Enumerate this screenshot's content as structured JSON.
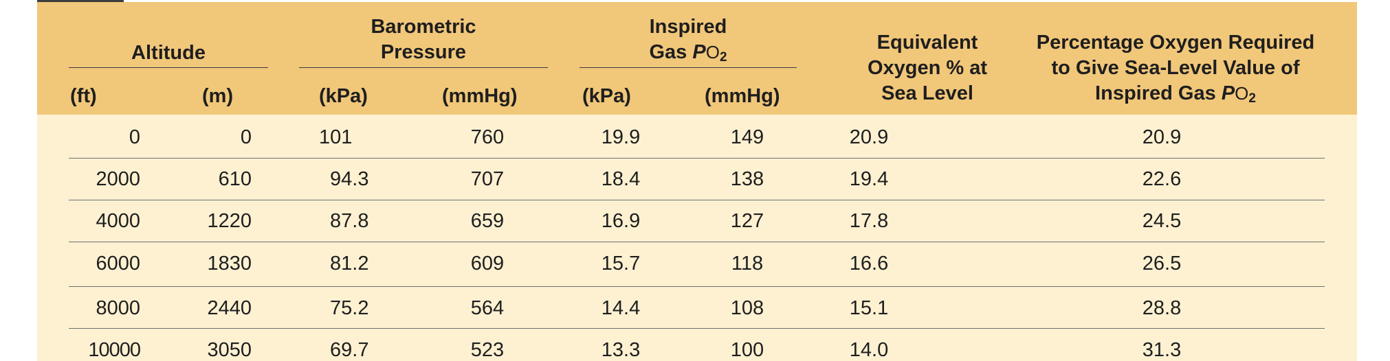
{
  "header": {
    "altitude": "Altitude",
    "barometric_line1": "Barometric",
    "barometric_line2": "Pressure",
    "inspired_line1": "Inspired",
    "inspired_line2_prefix": "Gas ",
    "po2_italic": "P",
    "po2_o": "O",
    "po2_sub": "2",
    "equivalent_line1": "Equivalent",
    "equivalent_line2": "Oxygen % at",
    "equivalent_line3": "Sea Level",
    "percentage_line1": "Percentage Oxygen Required",
    "percentage_line2": "to Give Sea-Level Value of",
    "percentage_line3_prefix": "Inspired Gas "
  },
  "units": {
    "ft": "(ft)",
    "m": "(m)",
    "baro_kpa": "(kPa)",
    "baro_mmhg": "(mmHg)",
    "insp_kpa": "(kPa)",
    "insp_mmhg": "(mmHg)"
  },
  "rows": [
    {
      "ft": "0",
      "m": "0",
      "baro_kpa": "101",
      "baro_mmhg": "760",
      "insp_kpa": "19.9",
      "insp_mmhg": "149",
      "equiv": "20.9",
      "pct": "20.9"
    },
    {
      "ft": "2000",
      "m": "610",
      "baro_kpa": "94.3",
      "baro_mmhg": "707",
      "insp_kpa": "18.4",
      "insp_mmhg": "138",
      "equiv": "19.4",
      "pct": "22.6"
    },
    {
      "ft": "4000",
      "m": "1220",
      "baro_kpa": "87.8",
      "baro_mmhg": "659",
      "insp_kpa": "16.9",
      "insp_mmhg": "127",
      "equiv": "17.8",
      "pct": "24.5"
    },
    {
      "ft": "6000",
      "m": "1830",
      "baro_kpa": "81.2",
      "baro_mmhg": "609",
      "insp_kpa": "15.7",
      "insp_mmhg": "118",
      "equiv": "16.6",
      "pct": "26.5"
    },
    {
      "ft": "8000",
      "m": "2440",
      "baro_kpa": "75.2",
      "baro_mmhg": "564",
      "insp_kpa": "14.4",
      "insp_mmhg": "108",
      "equiv": "15.1",
      "pct": "28.8"
    },
    {
      "ft": "10000",
      "m": "3050",
      "baro_kpa": "69.7",
      "baro_mmhg": "523",
      "insp_kpa": "13.3",
      "insp_mmhg": "100",
      "equiv": "14.0",
      "pct": "31.3"
    }
  ],
  "colors": {
    "header_band": "#f1c77a",
    "body_background": "#fdf1d2",
    "text": "#1e1e1e",
    "corner_tab": "#3d3d3d"
  }
}
